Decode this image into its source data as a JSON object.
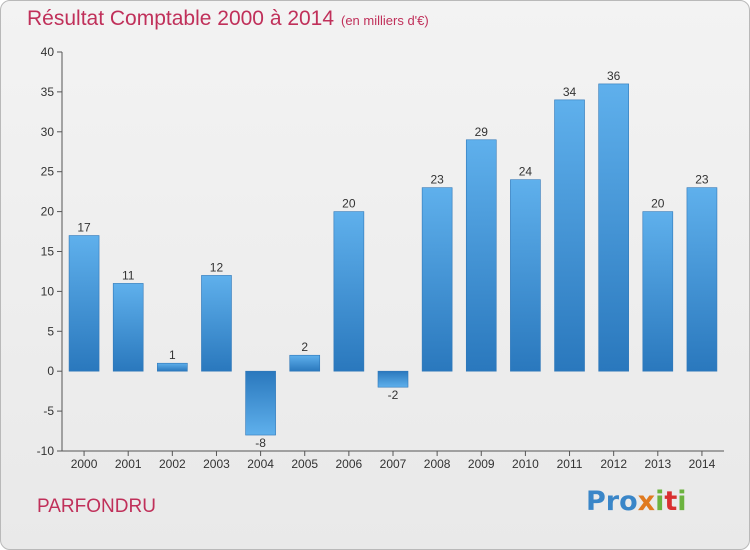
{
  "chart_data": {
    "type": "bar",
    "title": "Résultat Comptable 2000 à 2014",
    "subtitle": "(en milliers d'€)",
    "categories": [
      "2000",
      "2001",
      "2002",
      "2003",
      "2004",
      "2005",
      "2006",
      "2007",
      "2008",
      "2009",
      "2010",
      "2011",
      "2012",
      "2013",
      "2014"
    ],
    "values": [
      17,
      11,
      1,
      12,
      -8,
      2,
      20,
      -2,
      23,
      29,
      24,
      34,
      36,
      20,
      23
    ],
    "ylim": [
      -10,
      40
    ],
    "yticks": [
      -10,
      -5,
      0,
      5,
      10,
      15,
      20,
      25,
      30,
      35,
      40
    ],
    "grid": false,
    "bar_color": "#3a8fd6"
  },
  "footer": {
    "place": "PARFONDRU",
    "logo": "Proxiti"
  }
}
